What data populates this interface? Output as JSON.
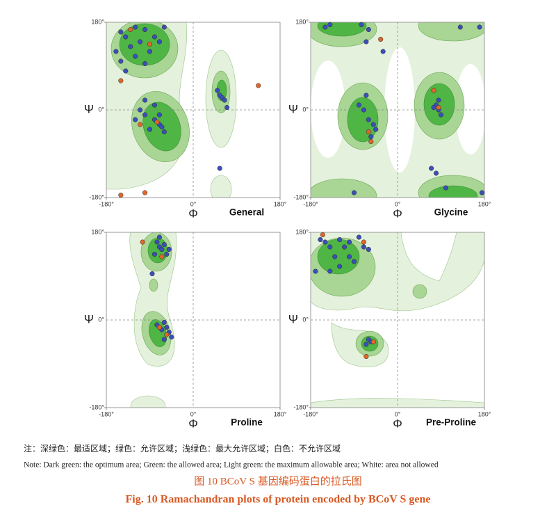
{
  "chart_data": [
    {
      "type": "scatter",
      "title": "General",
      "xlabel": "Φ",
      "ylabel": "Ψ",
      "xlim": [
        -180,
        180
      ],
      "ylim": [
        -180,
        180
      ],
      "xticks": [
        {
          "value": -180,
          "label": "-180°"
        },
        {
          "value": 0,
          "label": "0°"
        },
        {
          "value": 180,
          "label": "180°"
        }
      ],
      "yticks": [
        {
          "value": -180,
          "label": "-180°"
        },
        {
          "value": 0,
          "label": "0°"
        },
        {
          "value": 180,
          "label": "180°"
        }
      ],
      "series": [
        {
          "color": "#3b4fb8",
          "x": [
            -150,
            -140,
            -120,
            -100,
            -80,
            -130,
            -110,
            -90,
            -70,
            -160,
            -150,
            -60,
            -120,
            -100,
            -140,
            -100,
            -80,
            -70,
            -90,
            -60,
            -110,
            -120,
            -100,
            -70,
            -80,
            -65,
            50,
            55,
            60,
            65,
            70,
            55
          ],
          "y": [
            160,
            150,
            170,
            165,
            150,
            130,
            140,
            120,
            140,
            120,
            100,
            170,
            110,
            95,
            80,
            -10,
            -20,
            -30,
            -40,
            -45,
            0,
            -20,
            20,
            -10,
            10,
            -35,
            40,
            30,
            25,
            20,
            5,
            -120
          ]
        },
        {
          "color": "#e0662a",
          "x": [
            -130,
            -90,
            -75,
            -110,
            -150,
            135,
            -100,
            -150
          ],
          "y": [
            165,
            135,
            -25,
            -30,
            60,
            50,
            -170,
            -175
          ]
        }
      ]
    },
    {
      "type": "scatter",
      "title": "Glycine",
      "xlabel": "Φ",
      "ylabel": "Ψ",
      "xlim": [
        -180,
        180
      ],
      "ylim": [
        -180,
        180
      ],
      "xticks": [
        {
          "value": -180,
          "label": "-180°"
        },
        {
          "value": 0,
          "label": "0°"
        },
        {
          "value": 180,
          "label": "180°"
        }
      ],
      "yticks": [
        {
          "value": -180,
          "label": "-180°"
        },
        {
          "value": 0,
          "label": "0°"
        },
        {
          "value": 180,
          "label": "180°"
        }
      ],
      "series": [
        {
          "color": "#3b4fb8",
          "x": [
            -80,
            -70,
            -60,
            -50,
            -45,
            -65,
            -55,
            80,
            85,
            90,
            75,
            85,
            70,
            80,
            100,
            -90,
            -150,
            -140,
            130,
            170,
            -60,
            175,
            -65,
            -75,
            -30
          ],
          "y": [
            10,
            0,
            -20,
            -30,
            -40,
            30,
            -55,
            10,
            0,
            -10,
            5,
            20,
            -120,
            -130,
            -160,
            -170,
            170,
            175,
            170,
            170,
            165,
            -170,
            140,
            175,
            120
          ]
        },
        {
          "color": "#e0662a",
          "x": [
            -60,
            85,
            -55,
            -35,
            75
          ],
          "y": [
            -45,
            5,
            -65,
            145,
            40
          ]
        }
      ]
    },
    {
      "type": "scatter",
      "title": "Proline",
      "xlabel": "Φ",
      "ylabel": "Ψ",
      "xlim": [
        -180,
        180
      ],
      "ylim": [
        -180,
        180
      ],
      "xticks": [
        {
          "value": -180,
          "label": "-180°"
        },
        {
          "value": 0,
          "label": "0°"
        },
        {
          "value": 180,
          "label": "180°"
        }
      ],
      "yticks": [
        {
          "value": -180,
          "label": "-180°"
        },
        {
          "value": 0,
          "label": "0°"
        },
        {
          "value": 180,
          "label": "180°"
        }
      ],
      "series": [
        {
          "color": "#3b4fb8",
          "x": [
            -75,
            -70,
            -65,
            -60,
            -55,
            -80,
            -50,
            -70,
            -60,
            -55,
            -65,
            -50,
            -45,
            -75,
            -60,
            -85
          ],
          "y": [
            160,
            150,
            145,
            155,
            135,
            135,
            145,
            170,
            -5,
            -15,
            -20,
            -25,
            -35,
            -10,
            -40,
            95
          ]
        },
        {
          "color": "#e0662a",
          "x": [
            -105,
            -70,
            -55,
            -65
          ],
          "y": [
            160,
            -15,
            -30,
            130
          ]
        }
      ]
    },
    {
      "type": "scatter",
      "title": "Pre-Proline",
      "xlabel": "Φ",
      "ylabel": "Ψ",
      "xlim": [
        -180,
        180
      ],
      "ylim": [
        -180,
        180
      ],
      "xticks": [
        {
          "value": -180,
          "label": "-180°"
        },
        {
          "value": 0,
          "label": "0°"
        },
        {
          "value": 180,
          "label": "180°"
        }
      ],
      "yticks": [
        {
          "value": -180,
          "label": "-180°"
        },
        {
          "value": 0,
          "label": "0°"
        },
        {
          "value": 180,
          "label": "180°"
        }
      ],
      "series": [
        {
          "color": "#3b4fb8",
          "x": [
            -160,
            -150,
            -140,
            -120,
            -110,
            -100,
            -80,
            -70,
            -60,
            -130,
            -100,
            -140,
            -120,
            -90,
            -170,
            -60,
            -65,
            -55
          ],
          "y": [
            165,
            160,
            150,
            165,
            150,
            160,
            170,
            150,
            145,
            130,
            130,
            100,
            110,
            120,
            100,
            -40,
            -50,
            -45
          ]
        },
        {
          "color": "#e0662a",
          "x": [
            -155,
            -70,
            -65,
            -50
          ],
          "y": [
            175,
            160,
            -75,
            -45
          ]
        }
      ]
    }
  ],
  "notes": [
    "注：深绿色：最适区域；绿色：允许区域；浅绿色：最大允许区域；白色：不允许区域",
    "Note: Dark green: the optimum area; Green: the allowed area; Light green: the maximum allowable area; White: area not allowed"
  ],
  "caption": {
    "zh": "图 10   BCoV S 基因编码蛋白的拉氏图",
    "en": "Fig. 10   Ramachandran plots of protein encoded by BCoV S gene"
  }
}
